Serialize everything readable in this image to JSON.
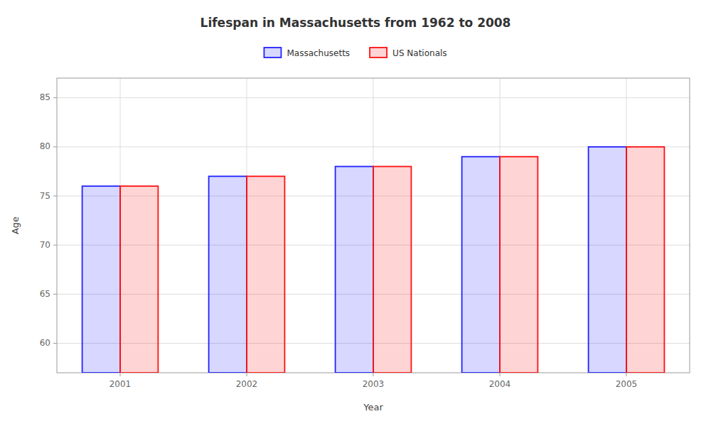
{
  "chart_data": {
    "type": "bar",
    "title": "Lifespan in Massachusetts from 1962 to 2008",
    "x_label": "Year",
    "y_label": "Age",
    "categories": [
      "2001",
      "2002",
      "2003",
      "2004",
      "2005"
    ],
    "series": [
      {
        "name": "Massachusetts",
        "color": "#2222ff",
        "values": [
          76,
          77,
          78,
          79,
          80
        ]
      },
      {
        "name": "US Nationals",
        "color": "#ff1111",
        "values": [
          76,
          77,
          78,
          79,
          80
        ]
      }
    ],
    "ylim": [
      57,
      87
    ],
    "yticks": [
      60,
      65,
      70,
      75,
      80,
      85
    ],
    "grid": true,
    "legend": "top"
  }
}
